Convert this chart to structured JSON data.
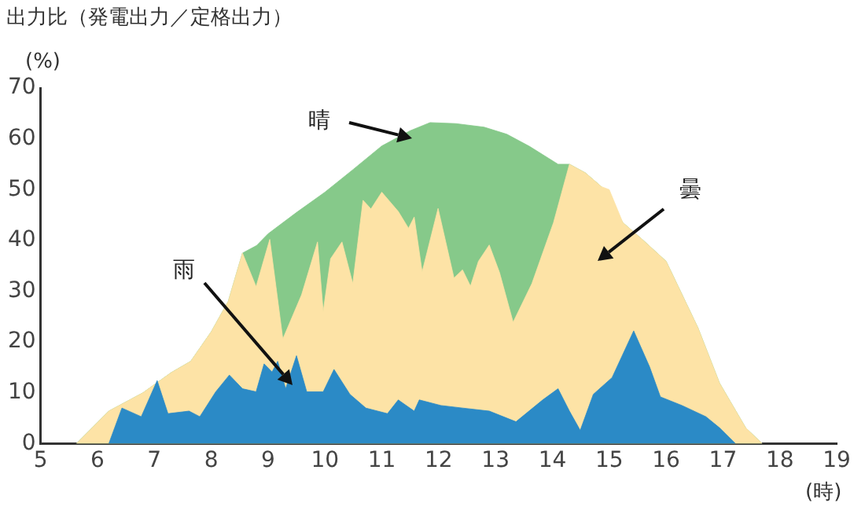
{
  "chart_data": {
    "type": "area",
    "title": "出力比（発電出力／定格出力）",
    "ylabel": "(%)",
    "xlabel": "(時)",
    "xlim": [
      5,
      19
    ],
    "xticks": [
      5,
      6,
      7,
      8,
      9,
      10,
      11,
      12,
      13,
      14,
      15,
      16,
      17,
      18,
      19
    ],
    "ylim": [
      0,
      70
    ],
    "yticks": [
      0,
      10,
      20,
      30,
      40,
      50,
      60,
      70
    ],
    "grid": false,
    "legend": false,
    "series": [
      {
        "name": "晴",
        "color": "#86c98a",
        "x": [
          5.63,
          6.2,
          6.8,
          7.3,
          7.64,
          8.0,
          8.3,
          8.55,
          8.8,
          9.0,
          9.5,
          10.0,
          10.5,
          11.0,
          11.5,
          11.85,
          12.3,
          12.8,
          13.2,
          13.6,
          14.1,
          14.3,
          14.58,
          14.86,
          15.24,
          15.6,
          16.0,
          16.56,
          16.94,
          17.4,
          17.69
        ],
        "values": [
          0,
          6.4,
          10,
          14,
          16.2,
          22,
          28,
          37.5,
          39,
          41.3,
          45.5,
          49.5,
          54,
          58.6,
          61.6,
          63.2,
          63,
          62.3,
          60.9,
          58.5,
          55,
          55,
          53.3,
          50.6,
          43.5,
          40,
          35.9,
          22.8,
          11.9,
          3.1,
          0
        ]
      },
      {
        "name": "曇",
        "color": "#fde3a6",
        "x": [
          5.63,
          6.2,
          6.8,
          7.3,
          7.64,
          8.0,
          8.3,
          8.55,
          8.79,
          9.03,
          9.26,
          9.59,
          9.87,
          9.97,
          10.1,
          10.3,
          10.49,
          10.67,
          10.81,
          11.0,
          11.29,
          11.47,
          11.57,
          11.71,
          11.99,
          12.27,
          12.42,
          12.56,
          12.7,
          12.89,
          13.07,
          13.31,
          13.64,
          13.88,
          14.02,
          14.3,
          14.58,
          14.86,
          15.0,
          15.24,
          15.6,
          16.0,
          16.56,
          16.94,
          17.4,
          17.69
        ],
        "values": [
          0,
          6.4,
          10,
          14,
          16.2,
          22,
          28,
          37.5,
          30.9,
          40.2,
          20.6,
          29.3,
          39.7,
          26,
          36.4,
          39.7,
          31.5,
          47.9,
          46.2,
          49.5,
          45.7,
          42.4,
          44.6,
          33.8,
          46.3,
          32.6,
          34.2,
          31,
          35.9,
          39.1,
          33.7,
          23.9,
          31.5,
          39.1,
          43.5,
          55,
          53.3,
          50.6,
          50,
          43.5,
          40,
          35.9,
          22.8,
          11.9,
          3.1,
          0
        ]
      },
      {
        "name": "雨",
        "color": "#2b8ac6",
        "x": [
          6.2,
          6.43,
          6.77,
          7.05,
          7.24,
          7.61,
          7.8,
          8.08,
          8.32,
          8.55,
          8.79,
          8.93,
          9.07,
          9.17,
          9.31,
          9.5,
          9.68,
          9.97,
          10.16,
          10.44,
          10.72,
          11.1,
          11.29,
          11.57,
          11.66,
          12.04,
          12.42,
          12.89,
          13.36,
          13.83,
          14.1,
          14.3,
          14.49,
          14.72,
          15.05,
          15.43,
          15.71,
          15.9,
          16.28,
          16.7,
          16.94,
          17.22
        ],
        "values": [
          0,
          7,
          5.3,
          12.4,
          5.9,
          6.4,
          5.3,
          10.2,
          13.5,
          10.8,
          10.2,
          15.7,
          14.1,
          16.2,
          10.8,
          17.3,
          10.2,
          10.2,
          14.6,
          9.7,
          7,
          5.9,
          8.6,
          6.4,
          8.6,
          7.5,
          7,
          6.4,
          4.3,
          8.6,
          10.8,
          6.4,
          2.6,
          9.7,
          13,
          22.2,
          15.1,
          9.2,
          7.5,
          5.3,
          3.1,
          0
        ]
      }
    ]
  }
}
